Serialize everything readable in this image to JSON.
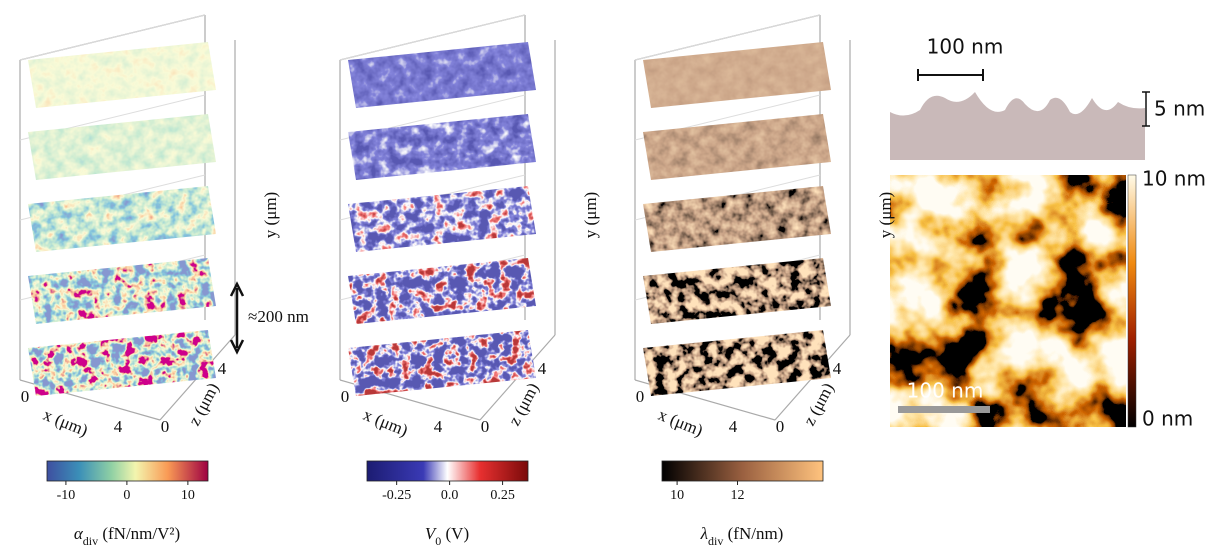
{
  "panels": [
    {
      "x_label": "x (μm)",
      "z_label": "z (μm)",
      "y_label": "y (μm)",
      "x_ticks": [
        0,
        4
      ],
      "z_ticks": [
        0,
        4
      ],
      "annotation": "≈200 nm",
      "colorbar": {
        "lim": [
          -13.1,
          13.3
        ],
        "ticks": [
          -10,
          0,
          10
        ],
        "symbol": "α",
        "subscript": "div",
        "unit": " (fN/nm/V²)"
      }
    },
    {
      "x_label": "x (μm)",
      "z_label": "z (μm)",
      "y_label": "y (μm)",
      "x_ticks": [
        0,
        4
      ],
      "z_ticks": [
        0,
        4
      ],
      "colorbar": {
        "lim": [
          -0.39,
          0.37
        ],
        "ticks": [
          -0.25,
          {
            "value": 0,
            "label": "0.0"
          },
          0.25
        ],
        "symbol": "V",
        "subscript": "0",
        "unit": " (V)"
      }
    },
    {
      "x_label": "x (μm)",
      "z_label": "z (μm)",
      "y_label": "y (μm)",
      "x_ticks": [
        0,
        4
      ],
      "z_ticks": [
        0,
        4
      ],
      "colorbar": {
        "lim": [
          9.5,
          14.83
        ],
        "ticks": [
          10,
          12
        ],
        "symbol": "λ",
        "subscript": "div",
        "unit": " (fN/nm)"
      }
    }
  ],
  "afm": {
    "scale_top": "100 nm",
    "height_scale": "5 nm",
    "colorbar_max": "10 nm",
    "colorbar_min": "0 nm",
    "scale_bar": "100 nm"
  }
}
